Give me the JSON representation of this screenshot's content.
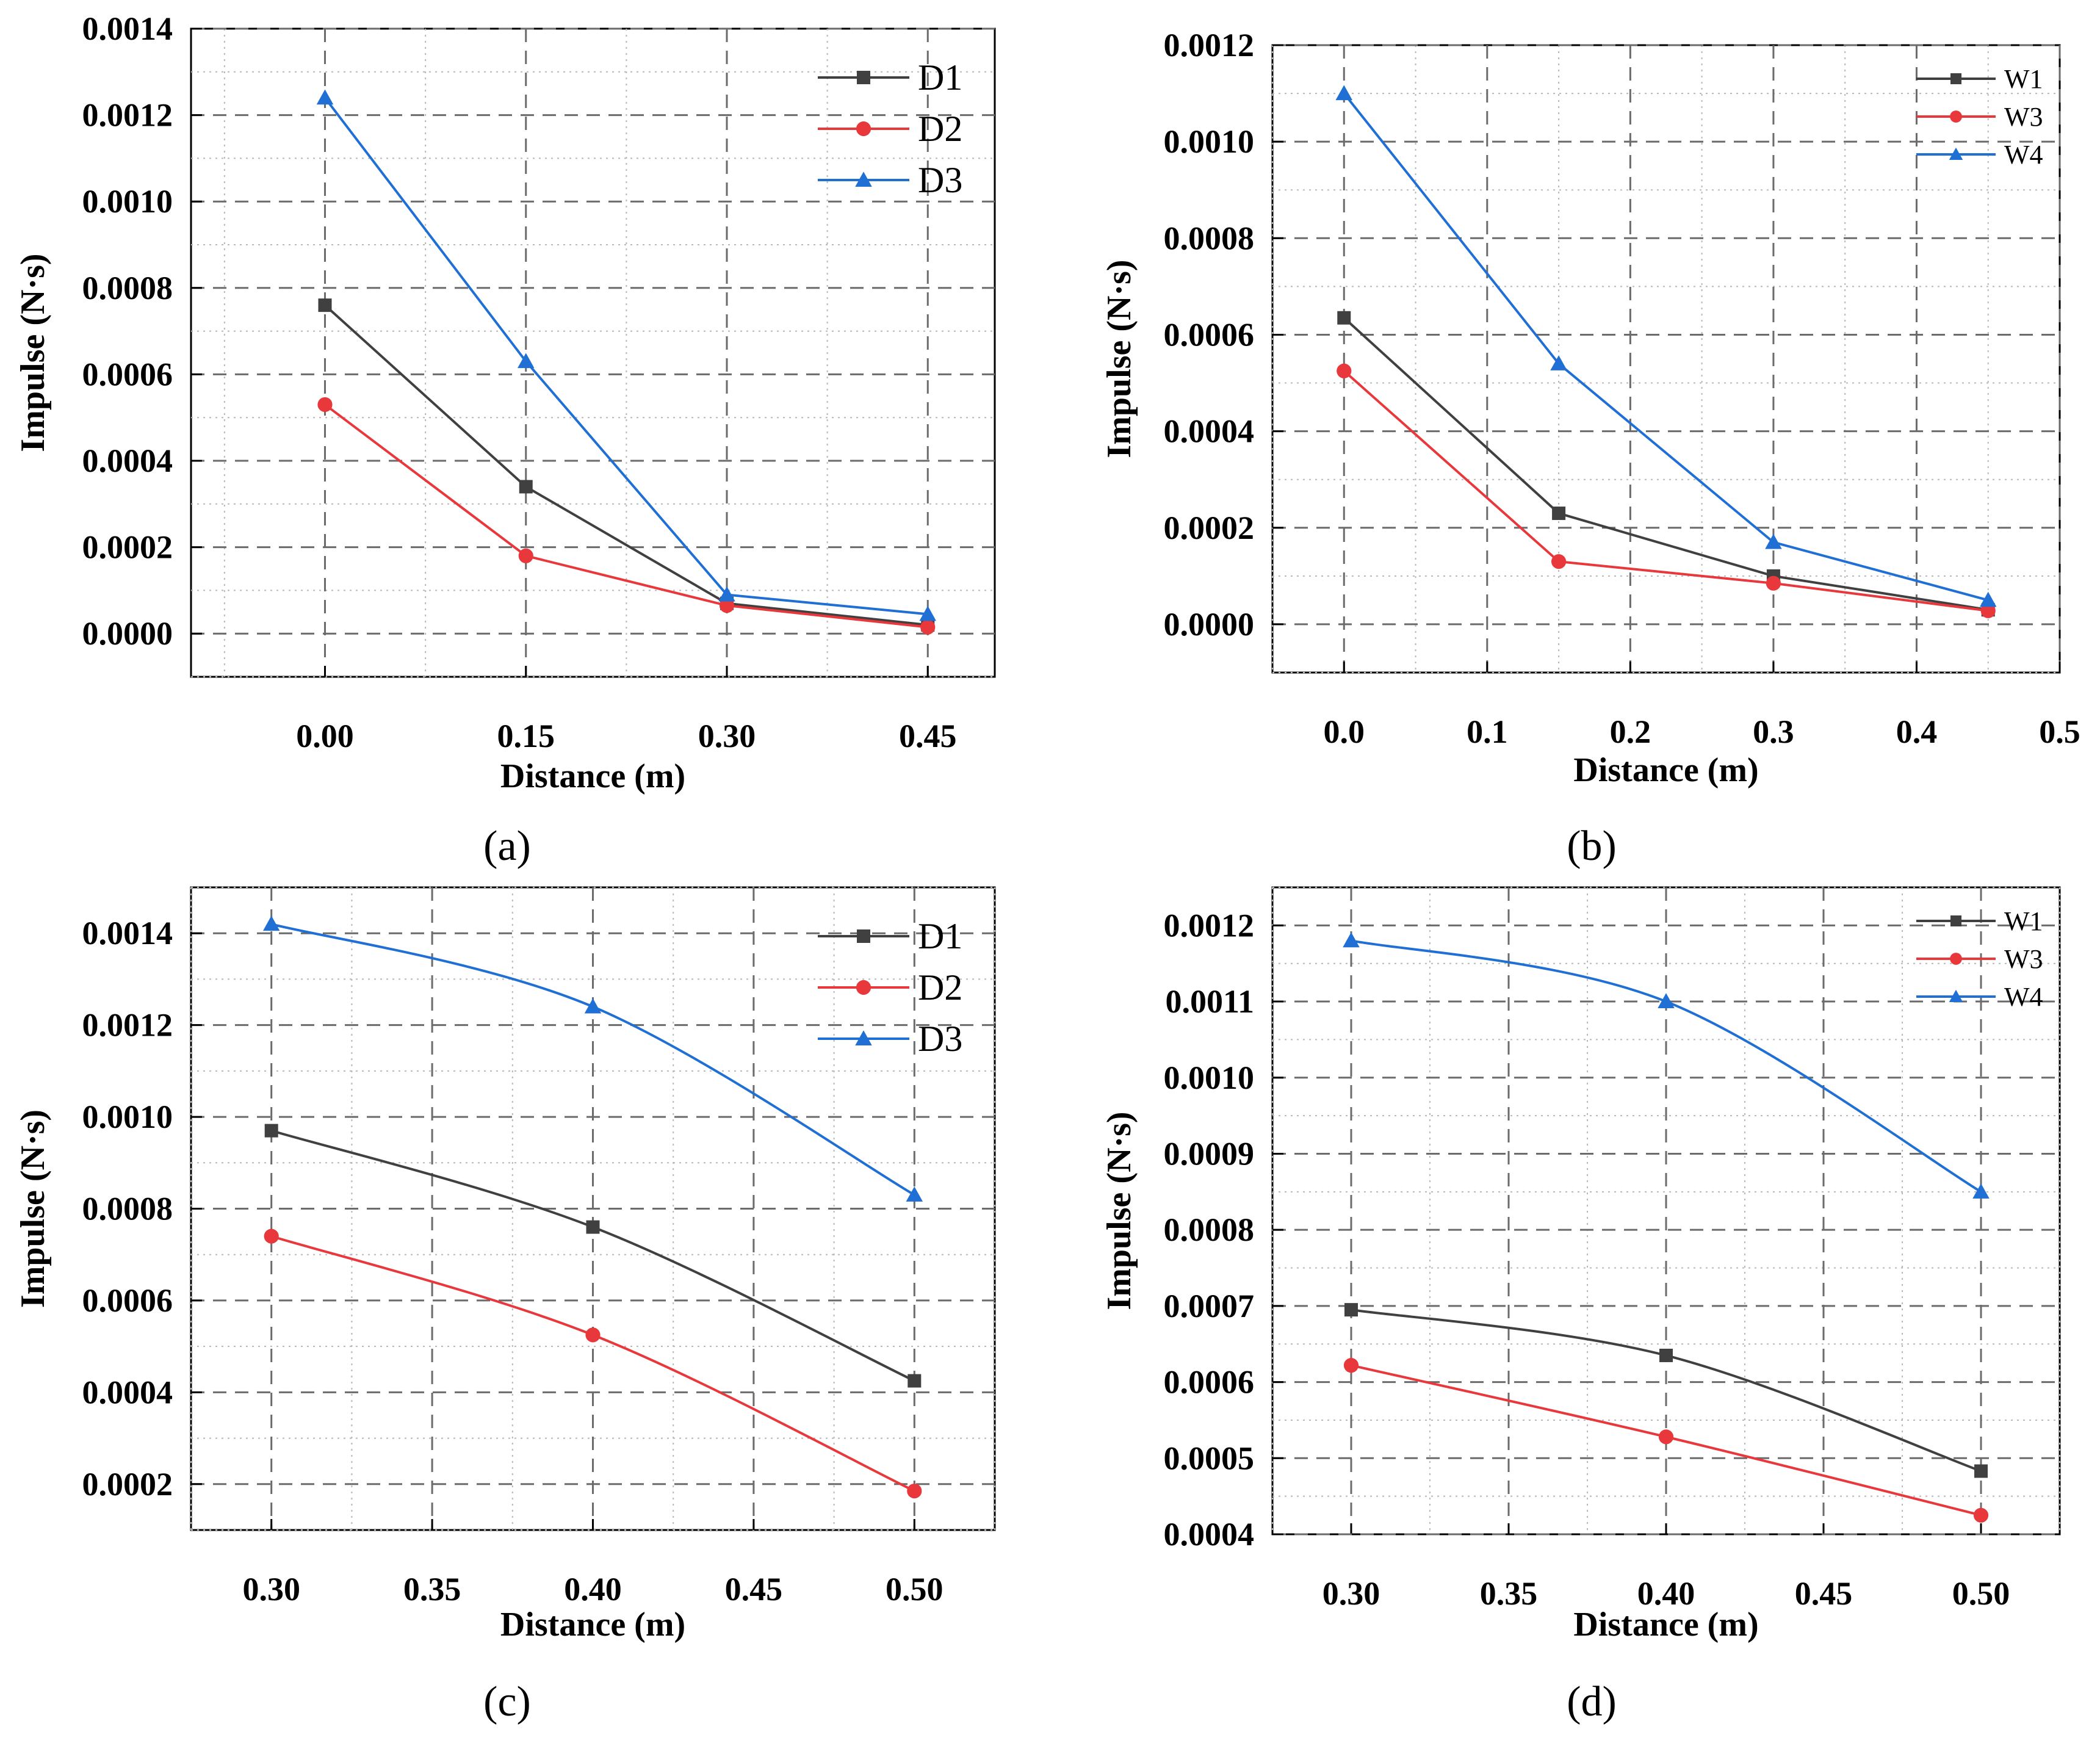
{
  "chart_data": [
    {
      "type": "line",
      "caption": "(a)",
      "xlabel": "Distance (m)",
      "ylabel": "Impulse (N·s)",
      "xlim": [
        -0.1,
        0.5
      ],
      "ylim": [
        -0.0001,
        0.0014
      ],
      "x_ticks": [
        "0.00",
        "0.15",
        "0.30",
        "0.45"
      ],
      "x_tick_values": [
        0.0,
        0.15,
        0.3,
        0.45
      ],
      "y_ticks": [
        "0.0000",
        "0.0002",
        "0.0004",
        "0.0006",
        "0.0008",
        "0.0010",
        "0.0012",
        "0.0014"
      ],
      "y_tick_values": [
        0.0,
        0.0002,
        0.0004,
        0.0006,
        0.0008,
        0.001,
        0.0012,
        0.0014
      ],
      "grid": true,
      "legend_position": "top-right",
      "legend_style": "big",
      "curve": "linear",
      "series": [
        {
          "name": "D1",
          "color": "#404040",
          "marker": "square",
          "x": [
            0.0,
            0.15,
            0.3,
            0.45
          ],
          "values": [
            0.00076,
            0.00034,
            7e-05,
            2e-05
          ]
        },
        {
          "name": "D2",
          "color": "#e8383c",
          "marker": "circle",
          "x": [
            0.0,
            0.15,
            0.3,
            0.45
          ],
          "values": [
            0.00053,
            0.00018,
            6.5e-05,
            1.5e-05
          ]
        },
        {
          "name": "D3",
          "color": "#1f6fd4",
          "marker": "triangle",
          "x": [
            0.0,
            0.15,
            0.3,
            0.45
          ],
          "values": [
            0.00124,
            0.00063,
            9e-05,
            4.5e-05
          ]
        }
      ]
    },
    {
      "type": "line",
      "caption": "(b)",
      "xlabel": "Distance (m)",
      "ylabel": "Impulse (N·s)",
      "xlim": [
        -0.05,
        0.5
      ],
      "ylim": [
        -0.0001,
        0.0012
      ],
      "x_ticks": [
        "0.0",
        "0.1",
        "0.2",
        "0.3",
        "0.4",
        "0.5"
      ],
      "x_tick_values": [
        0.0,
        0.1,
        0.2,
        0.3,
        0.4,
        0.5
      ],
      "y_ticks": [
        "0.0000",
        "0.0002",
        "0.0004",
        "0.0006",
        "0.0008",
        "0.0010",
        "0.0012"
      ],
      "y_tick_values": [
        0.0,
        0.0002,
        0.0004,
        0.0006,
        0.0008,
        0.001,
        0.0012
      ],
      "grid": true,
      "legend_position": "top-right",
      "legend_style": "small",
      "curve": "linear",
      "series": [
        {
          "name": "W1",
          "color": "#404040",
          "marker": "square",
          "x": [
            0.0,
            0.15,
            0.3,
            0.45
          ],
          "values": [
            0.000635,
            0.00023,
            0.0001,
            3e-05
          ]
        },
        {
          "name": "W3",
          "color": "#e8383c",
          "marker": "circle",
          "x": [
            0.0,
            0.15,
            0.3,
            0.45
          ],
          "values": [
            0.000525,
            0.00013,
            8.5e-05,
            2.8e-05
          ]
        },
        {
          "name": "W4",
          "color": "#1f6fd4",
          "marker": "triangle",
          "x": [
            0.0,
            0.15,
            0.3,
            0.45
          ],
          "values": [
            0.0011,
            0.00054,
            0.00017,
            5e-05
          ]
        }
      ]
    },
    {
      "type": "line",
      "caption": "(c)",
      "xlabel": "Distance (m)",
      "ylabel": "Impulse (N·s)",
      "xlim": [
        0.275,
        0.525
      ],
      "ylim": [
        0.0001,
        0.0015
      ],
      "x_ticks": [
        "0.30",
        "0.35",
        "0.40",
        "0.45",
        "0.50"
      ],
      "x_tick_values": [
        0.3,
        0.35,
        0.4,
        0.45,
        0.5
      ],
      "y_ticks": [
        "0.0002",
        "0.0004",
        "0.0006",
        "0.0008",
        "0.0010",
        "0.0012",
        "0.0014"
      ],
      "y_tick_values": [
        0.0002,
        0.0004,
        0.0006,
        0.0008,
        0.001,
        0.0012,
        0.0014
      ],
      "grid": true,
      "legend_position": "top-right",
      "legend_style": "big",
      "curve": "smooth",
      "series": [
        {
          "name": "D1",
          "color": "#404040",
          "marker": "square",
          "x": [
            0.3,
            0.4,
            0.5
          ],
          "values": [
            0.00097,
            0.00076,
            0.000425
          ]
        },
        {
          "name": "D2",
          "color": "#e8383c",
          "marker": "circle",
          "x": [
            0.3,
            0.4,
            0.5
          ],
          "values": [
            0.00074,
            0.000525,
            0.000185
          ]
        },
        {
          "name": "D3",
          "color": "#1f6fd4",
          "marker": "triangle",
          "x": [
            0.3,
            0.4,
            0.5
          ],
          "values": [
            0.00142,
            0.00124,
            0.00083
          ]
        }
      ]
    },
    {
      "type": "line",
      "caption": "(d)",
      "xlabel": "Distance (m)",
      "ylabel": "Impulse (N·s)",
      "xlim": [
        0.275,
        0.525
      ],
      "ylim": [
        0.0004,
        0.00125
      ],
      "x_ticks": [
        "0.30",
        "0.35",
        "0.40",
        "0.45",
        "0.50"
      ],
      "x_tick_values": [
        0.3,
        0.35,
        0.4,
        0.45,
        0.5
      ],
      "y_ticks": [
        "0.0004",
        "0.0005",
        "0.0006",
        "0.0007",
        "0.0008",
        "0.0009",
        "0.0010",
        "0.0011",
        "0.0012"
      ],
      "y_tick_values": [
        0.0004,
        0.0005,
        0.0006,
        0.0007,
        0.0008,
        0.0009,
        0.001,
        0.0011,
        0.0012
      ],
      "grid": true,
      "legend_position": "top-right",
      "legend_style": "small",
      "curve": "smooth",
      "series": [
        {
          "name": "W1",
          "color": "#404040",
          "marker": "square",
          "x": [
            0.3,
            0.4,
            0.5
          ],
          "values": [
            0.000695,
            0.000635,
            0.000483
          ]
        },
        {
          "name": "W3",
          "color": "#e8383c",
          "marker": "circle",
          "x": [
            0.3,
            0.4,
            0.5
          ],
          "values": [
            0.000622,
            0.000528,
            0.000425
          ]
        },
        {
          "name": "W4",
          "color": "#1f6fd4",
          "marker": "triangle",
          "x": [
            0.3,
            0.4,
            0.5
          ],
          "values": [
            0.00118,
            0.0011,
            0.00085
          ]
        }
      ]
    }
  ]
}
